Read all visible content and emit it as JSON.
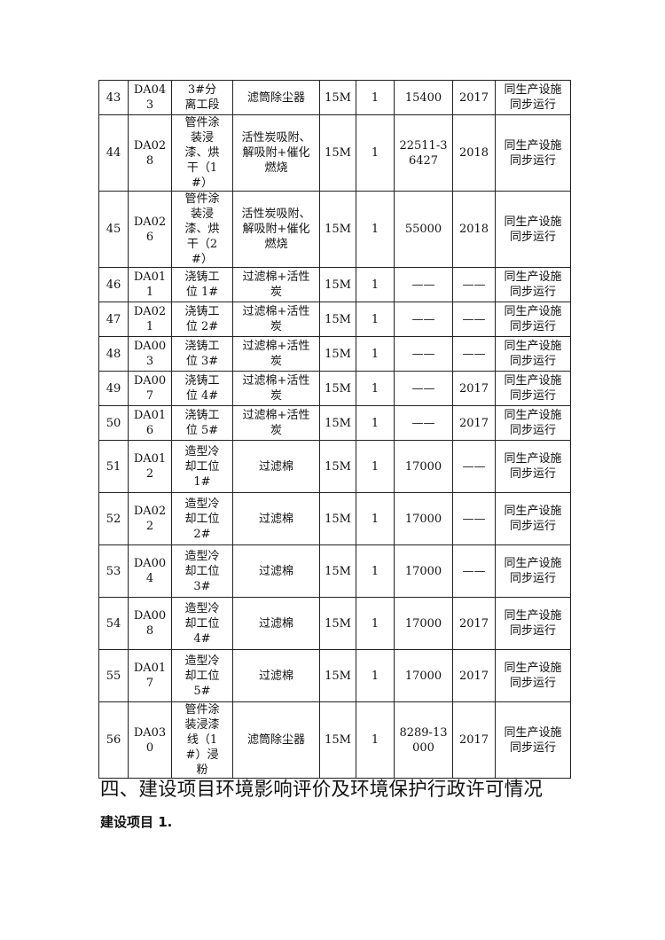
{
  "rows": [
    {
      "no": "43",
      "code": "DA043",
      "process": "3#分离工段",
      "treatment": "滤筒除尘器",
      "height": "15M",
      "count": "1",
      "flow": "15400",
      "year": "2017",
      "status": "同生产设施同步运行"
    },
    {
      "no": "44",
      "code": "DA028",
      "process": "管件涂装浸漆、烘干（1#）",
      "treatment": "活性炭吸附、解吸附+催化燃烧",
      "height": "15M",
      "count": "1",
      "flow": "22511-36427",
      "year": "2018",
      "status": "同生产设施同步运行"
    },
    {
      "no": "45",
      "code": "DA026",
      "process": "管件涂装浸漆、烘干（2#）",
      "treatment": "活性炭吸附、解吸附+催化燃烧",
      "height": "15M",
      "count": "1",
      "flow": "55000",
      "year": "2018",
      "status": "同生产设施同步运行"
    },
    {
      "no": "46",
      "code": "DA011",
      "process": "浇铸工位 1#",
      "treatment": "过滤棉+活性炭",
      "height": "15M",
      "count": "1",
      "flow": "——",
      "year": "——",
      "status": "同生产设施同步运行"
    },
    {
      "no": "47",
      "code": "DA021",
      "process": "浇铸工位 2#",
      "treatment": "过滤棉+活性炭",
      "height": "15M",
      "count": "1",
      "flow": "——",
      "year": "——",
      "status": "同生产设施同步运行"
    },
    {
      "no": "48",
      "code": "DA003",
      "process": "浇铸工位 3#",
      "treatment": "过滤棉+活性炭",
      "height": "15M",
      "count": "1",
      "flow": "——",
      "year": "——",
      "status": "同生产设施同步运行"
    },
    {
      "no": "49",
      "code": "DA007",
      "process": "浇铸工位 4#",
      "treatment": "过滤棉+活性炭",
      "height": "15M",
      "count": "1",
      "flow": "——",
      "year": "2017",
      "status": "同生产设施同步运行"
    },
    {
      "no": "50",
      "code": "DA016",
      "process": "浇铸工位 5#",
      "treatment": "过滤棉+活性炭",
      "height": "15M",
      "count": "1",
      "flow": "——",
      "year": "2017",
      "status": "同生产设施同步运行"
    },
    {
      "no": "51",
      "code": "DA012",
      "process": "造型冷却工位1#",
      "treatment": "过滤棉",
      "height": "15M",
      "count": "1",
      "flow": "17000",
      "year": "——",
      "status": "同生产设施同步运行"
    },
    {
      "no": "52",
      "code": "DA022",
      "process": "造型冷却工位2#",
      "treatment": "过滤棉",
      "height": "15M",
      "count": "1",
      "flow": "17000",
      "year": "——",
      "status": "同生产设施同步运行"
    },
    {
      "no": "53",
      "code": "DA004",
      "process": "造型冷却工位3#",
      "treatment": "过滤棉",
      "height": "15M",
      "count": "1",
      "flow": "17000",
      "year": "——",
      "status": "同生产设施同步运行"
    },
    {
      "no": "54",
      "code": "DA008",
      "process": "造型冷却工位4#",
      "treatment": "过滤棉",
      "height": "15M",
      "count": "1",
      "flow": "17000",
      "year": "2017",
      "status": "同生产设施同步运行"
    },
    {
      "no": "55",
      "code": "DA017",
      "process": "造型冷却工位5#",
      "treatment": "过滤棉",
      "height": "15M",
      "count": "1",
      "flow": "17000",
      "year": "2017",
      "status": "同生产设施同步运行"
    },
    {
      "no": "56",
      "code": "DA030",
      "process": "管件涂装浸漆线（1#）浸粉",
      "treatment": "滤筒除尘器",
      "height": "15M",
      "count": "1",
      "flow": "8289-13000",
      "year": "2017",
      "status": "同生产设施同步运行"
    }
  ],
  "section_heading": "四、建设项目环境影响评价及环境保护行政许可情况",
  "subheading": "建设项目 1."
}
